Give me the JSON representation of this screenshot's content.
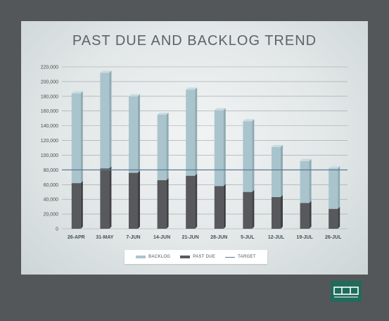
{
  "chart_data": {
    "type": "bar",
    "stacked": true,
    "title": "PAST DUE AND BACKLOG TREND",
    "categories": [
      "26-APR",
      "31-MAY",
      "7-JUN",
      "14-JUN",
      "21-JUN",
      "28-JUN",
      "5-JUL",
      "12-JUL",
      "19-JUL",
      "26-JUL"
    ],
    "series": [
      {
        "name": "PAST DUE",
        "values": [
          62000,
          82000,
          76000,
          66000,
          72000,
          58000,
          50000,
          43000,
          35000,
          27000
        ],
        "color": "#58595c"
      },
      {
        "name": "BACKLOG",
        "values": [
          122000,
          130000,
          104000,
          89000,
          117000,
          103000,
          96000,
          68000,
          57000,
          55000
        ],
        "color": "#a9c4cc"
      }
    ],
    "target": {
      "name": "TARGET",
      "value": 80000,
      "color": "#5a7a96"
    },
    "y_ticks": [
      "0",
      "20,000",
      "40,000",
      "60,000",
      "80,000",
      "100,000",
      "120,000",
      "140,000",
      "160,000",
      "180,000",
      "200,000",
      "220,000"
    ],
    "ylim": [
      0,
      220000
    ],
    "grid": true,
    "legend_position": "bottom",
    "xlabel": "",
    "ylabel": ""
  },
  "legend": {
    "backlog": "BACKLOG",
    "past_due": "PAST DUE",
    "target": "TARGET"
  },
  "logo": {
    "text": "ODL",
    "color": "#1f6b5c"
  }
}
